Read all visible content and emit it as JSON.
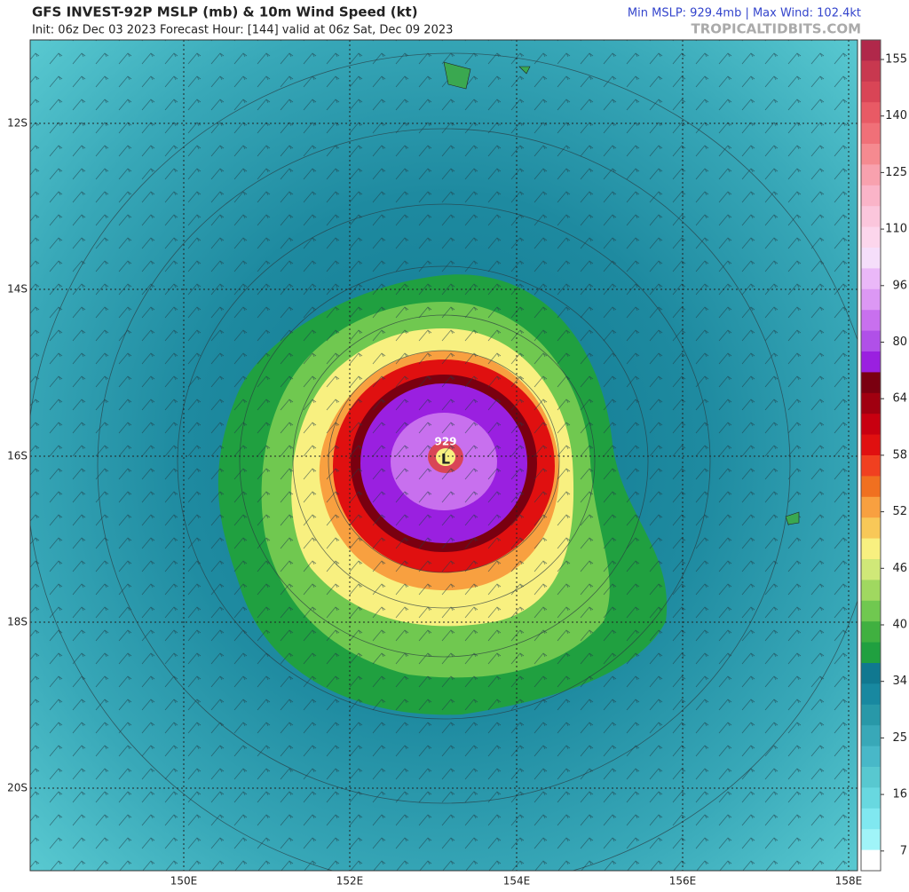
{
  "header": {
    "title": "GFS INVEST-92P MSLP (mb) & 10m Wind Speed (kt)",
    "subtitle": "Init: 06z Dec 03 2023   Forecast Hour: [144]   valid at 06z Sat, Dec 09 2023",
    "stats": "Min MSLP: 929.4mb  |  Max Wind: 102.4kt",
    "site": "TROPICALTIDBITS.COM"
  },
  "map": {
    "lat_labels": [
      "12S",
      "14S",
      "16S",
      "18S",
      "20S"
    ],
    "lon_labels": [
      "150E",
      "152E",
      "154E",
      "156E",
      "158E"
    ],
    "center_pressure": "929",
    "low_symbol": "L"
  },
  "colorbar": {
    "labels": [
      "155",
      "140",
      "125",
      "110",
      "96",
      "80",
      "64",
      "58",
      "52",
      "46",
      "40",
      "34",
      "25",
      "16",
      "7"
    ],
    "colors": [
      "#b0284a",
      "#c8384f",
      "#d94556",
      "#e85a65",
      "#f07078",
      "#f58a90",
      "#f8a1ae",
      "#fab4c8",
      "#fbc6dc",
      "#fcd6ec",
      "#f5defa",
      "#eab8f8",
      "#dc98f4",
      "#c870ee",
      "#b050e8",
      "#9a20e0",
      "#7a0010",
      "#a00010",
      "#c80010",
      "#e01010",
      "#f04020",
      "#f07020",
      "#f8a040",
      "#f8c858",
      "#f8f080",
      "#d0e878",
      "#a0d860",
      "#70c850",
      "#40b040",
      "#20a040",
      "#107890",
      "#1888a0",
      "#2898a8",
      "#38a8b8",
      "#48b8c8",
      "#58c8d0",
      "#68d8e0",
      "#80e8f0",
      "#a0f4f8",
      "#ffffff"
    ]
  }
}
